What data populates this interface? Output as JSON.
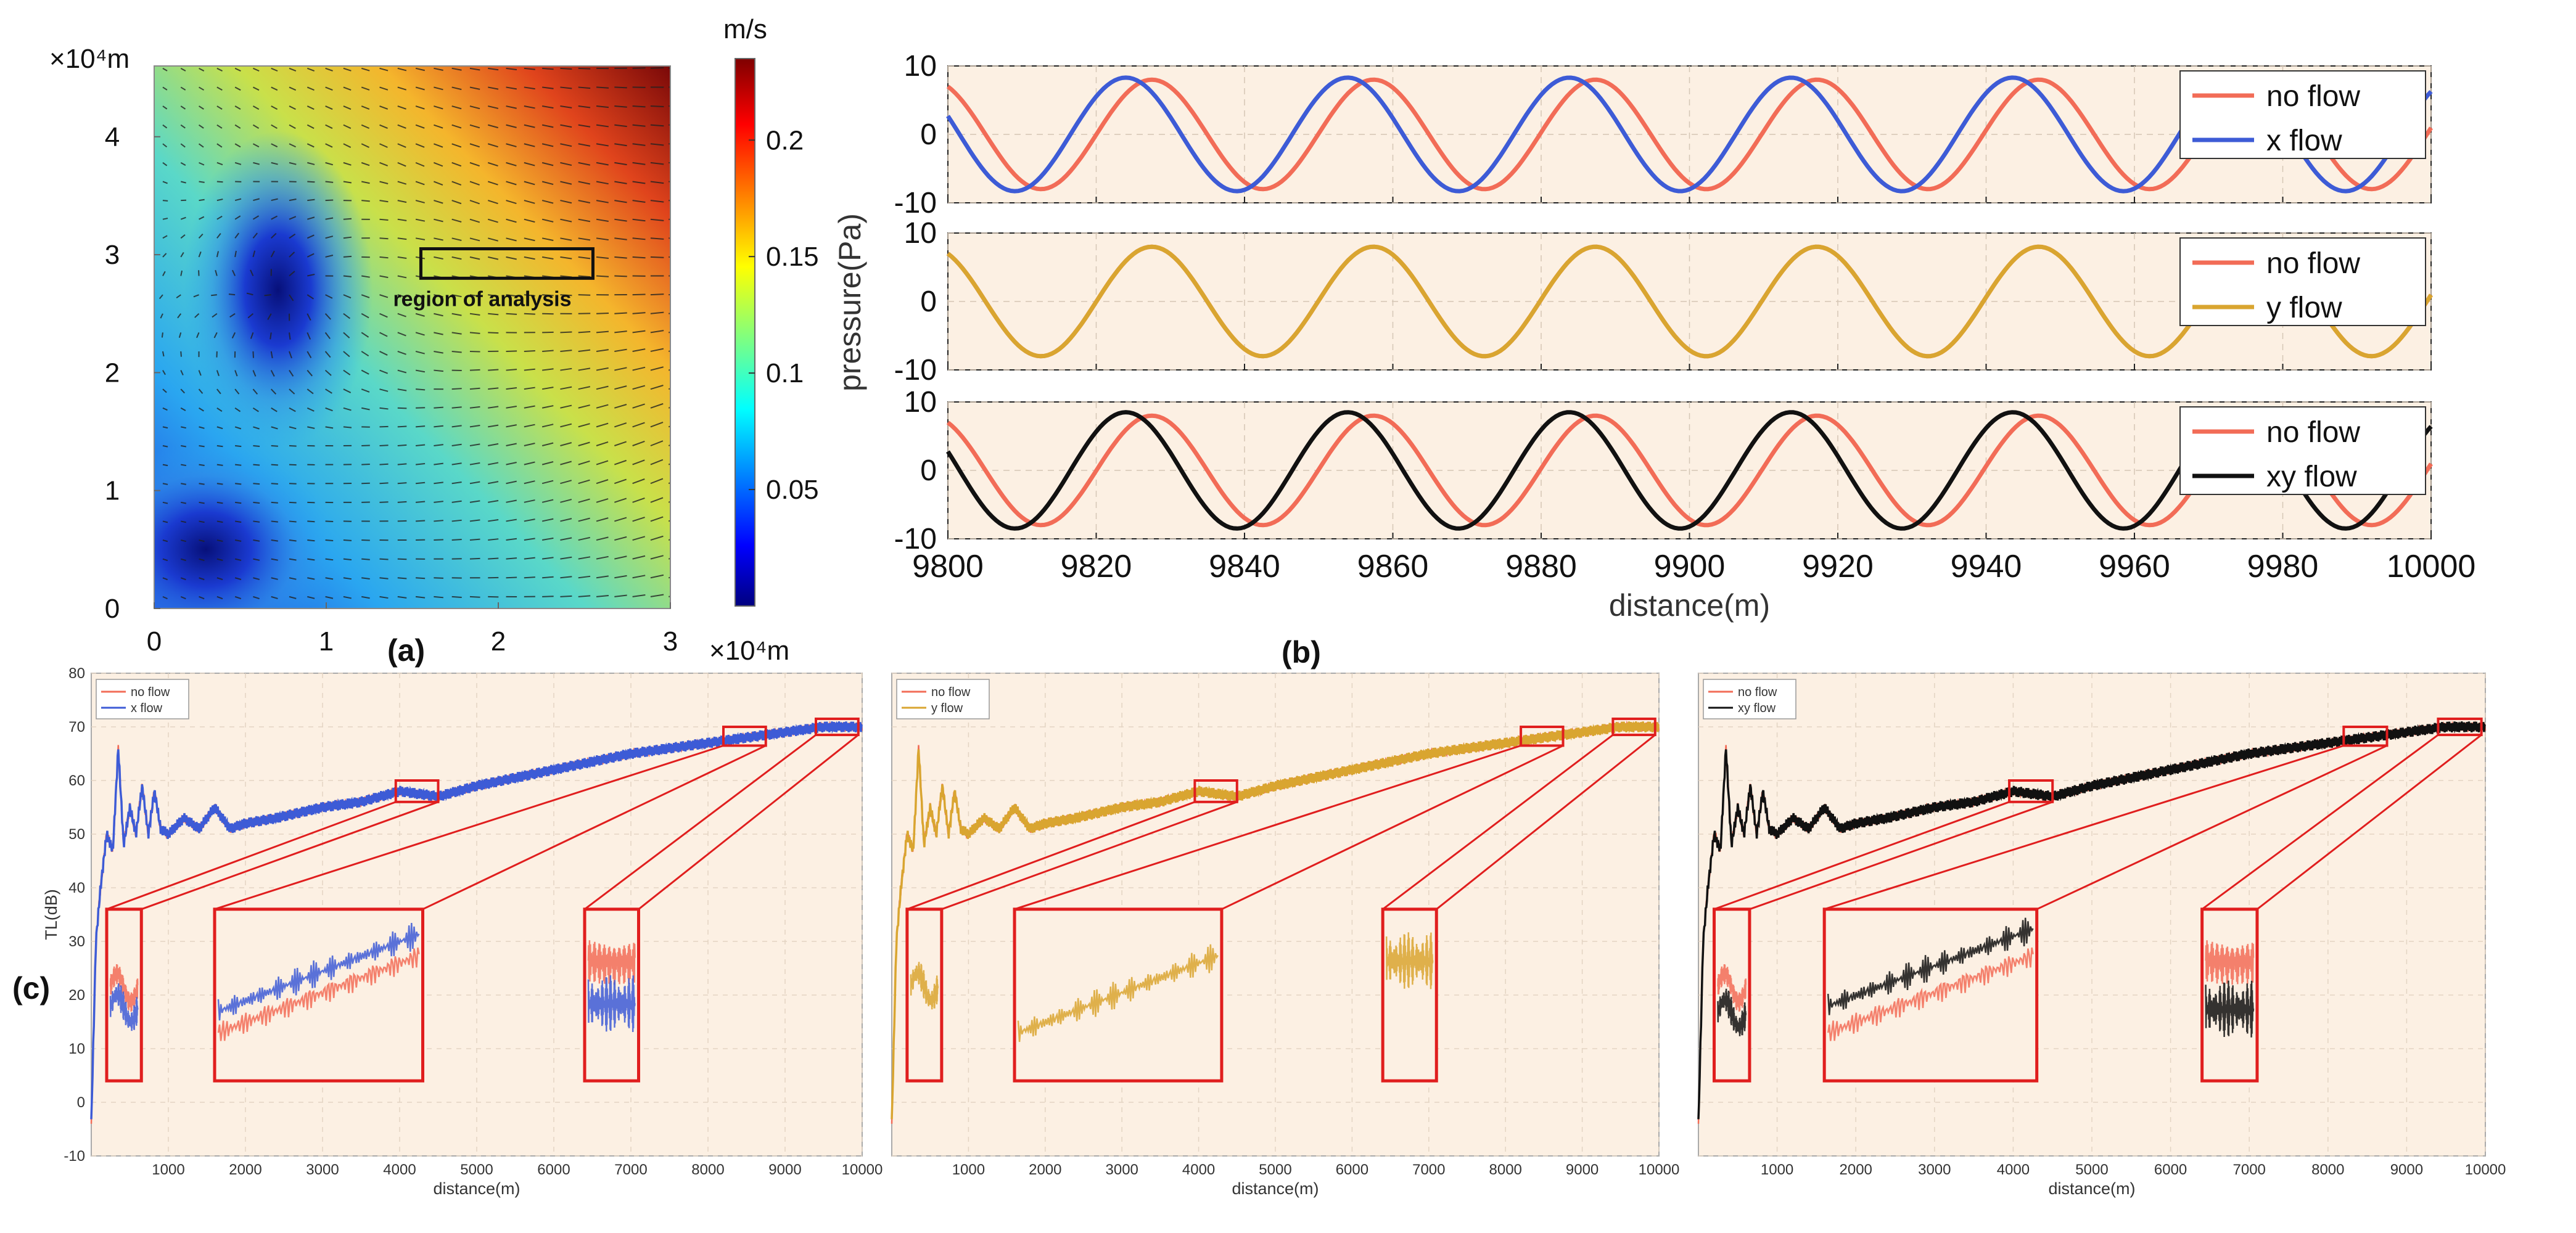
{
  "panel_labels": {
    "a": "(a)",
    "b": "(b)",
    "c": "(c)"
  },
  "colors": {
    "no_flow": "#f26c57",
    "x_flow": "#3d5bd6",
    "y_flow": "#d9a530",
    "xy_flow": "#111111",
    "plot_bg": "#fcf0e3",
    "zoom_box": "#e01e1e"
  },
  "chart_data": [
    {
      "id": "a",
      "type": "heatmap",
      "title": "",
      "x_axis_label": "×10⁴m",
      "y_axis_label": "×10⁴m",
      "xlim": [
        0,
        3
      ],
      "ylim": [
        0,
        4.6
      ],
      "xticks": [
        "0",
        "1",
        "2",
        "3"
      ],
      "yticks": [
        "0",
        "1",
        "2",
        "3",
        "4"
      ],
      "colorbar": {
        "unit": "m/s",
        "range": [
          0.0,
          0.235
        ],
        "ticks": [
          "0.05",
          "0.1",
          "0.15",
          "0.2"
        ],
        "tick_values": [
          0.05,
          0.1,
          0.15,
          0.2
        ]
      },
      "quiver": true,
      "minima": [
        {
          "x": 0.72,
          "y": 2.7,
          "value": 0.0
        },
        {
          "x": 0.3,
          "y": 0.5,
          "value": 0.0
        }
      ],
      "annotation": {
        "text": "region of analysis",
        "x0": 1.55,
        "x1": 2.55,
        "y0": 2.8,
        "y1": 3.05
      }
    },
    {
      "id": "b",
      "type": "line",
      "xlabel": "distance(m)",
      "ylabel": "pressure(Pa)",
      "xlim": [
        9800,
        10000
      ],
      "xticks": [
        "9800",
        "9820",
        "9840",
        "9860",
        "9880",
        "9900",
        "9920",
        "9940",
        "9960",
        "9980",
        "10000"
      ],
      "subplots": [
        {
          "ylim": [
            -10,
            10
          ],
          "yticks": [
            "10",
            "0",
            "-10"
          ],
          "legend": [
            "no flow",
            "x flow"
          ],
          "series": [
            {
              "name": "no flow",
              "amplitude": 8,
              "period": 29.9,
              "peak_x": 9827.5
            },
            {
              "name": "x flow",
              "amplitude": 8.3,
              "period": 29.9,
              "peak_x": 9824
            }
          ]
        },
        {
          "ylim": [
            -10,
            10
          ],
          "yticks": [
            "10",
            "0",
            "-10"
          ],
          "legend": [
            "no flow",
            "y flow"
          ],
          "series": [
            {
              "name": "no flow",
              "amplitude": 8,
              "period": 29.9,
              "peak_x": 9827.5
            },
            {
              "name": "y flow",
              "amplitude": 8,
              "period": 29.9,
              "peak_x": 9827.5
            }
          ]
        },
        {
          "ylim": [
            -10,
            10
          ],
          "yticks": [
            "10",
            "0",
            "-10"
          ],
          "legend": [
            "no flow",
            "xy flow"
          ],
          "series": [
            {
              "name": "no flow",
              "amplitude": 8,
              "period": 29.9,
              "peak_x": 9827.5
            },
            {
              "name": "xy flow",
              "amplitude": 8.5,
              "period": 29.9,
              "peak_x": 9824
            }
          ]
        }
      ]
    },
    {
      "id": "c",
      "type": "line",
      "ylabel": "TL(dB)",
      "xlabel": "distance(m)",
      "xlim": [
        0,
        10000
      ],
      "ylim": [
        -10,
        80
      ],
      "xticks": [
        "1000",
        "2000",
        "3000",
        "4000",
        "5000",
        "6000",
        "7000",
        "8000",
        "9000",
        "10000"
      ],
      "yticks": [
        "-10",
        "0",
        "10",
        "20",
        "30",
        "40",
        "50",
        "60",
        "70",
        "80"
      ],
      "tl_curve": {
        "x": [
          0,
          60,
          120,
          200,
          280,
          350,
          420,
          500,
          580,
          660,
          740,
          820,
          900,
          1000,
          1200,
          1400,
          1600,
          1800,
          2000,
          2400,
          3000,
          3500,
          4000,
          4500,
          5000,
          6000,
          7000,
          8000,
          9000,
          9500,
          10000
        ],
        "y": [
          -4,
          30,
          40,
          50,
          47,
          66,
          48,
          55,
          50,
          59,
          50,
          58,
          51,
          50,
          53,
          51,
          55,
          51,
          52,
          53,
          55,
          56,
          58,
          57,
          59,
          62,
          65,
          67,
          69,
          70,
          70
        ]
      },
      "zoom_windows": [
        {
          "x0": 3950,
          "x1": 4500,
          "y0": 56,
          "y1": 60
        },
        {
          "x0": 8200,
          "x1": 8750,
          "y0": 66.5,
          "y1": 70
        },
        {
          "x0": 9400,
          "x1": 9950,
          "y0": 68.5,
          "y1": 71.5
        }
      ],
      "subplots": [
        {
          "legend": [
            "no flow",
            "x flow"
          ],
          "flow_series": "x flow",
          "inset_offsets": [
            -4,
            4,
            -8
          ]
        },
        {
          "legend": [
            "no flow",
            "y flow"
          ],
          "flow_series": "y flow",
          "inset_offsets": [
            0,
            0,
            0
          ]
        },
        {
          "legend": [
            "no flow",
            "xy flow"
          ],
          "flow_series": "xy flow",
          "inset_offsets": [
            -5,
            5,
            -9
          ]
        }
      ]
    }
  ]
}
